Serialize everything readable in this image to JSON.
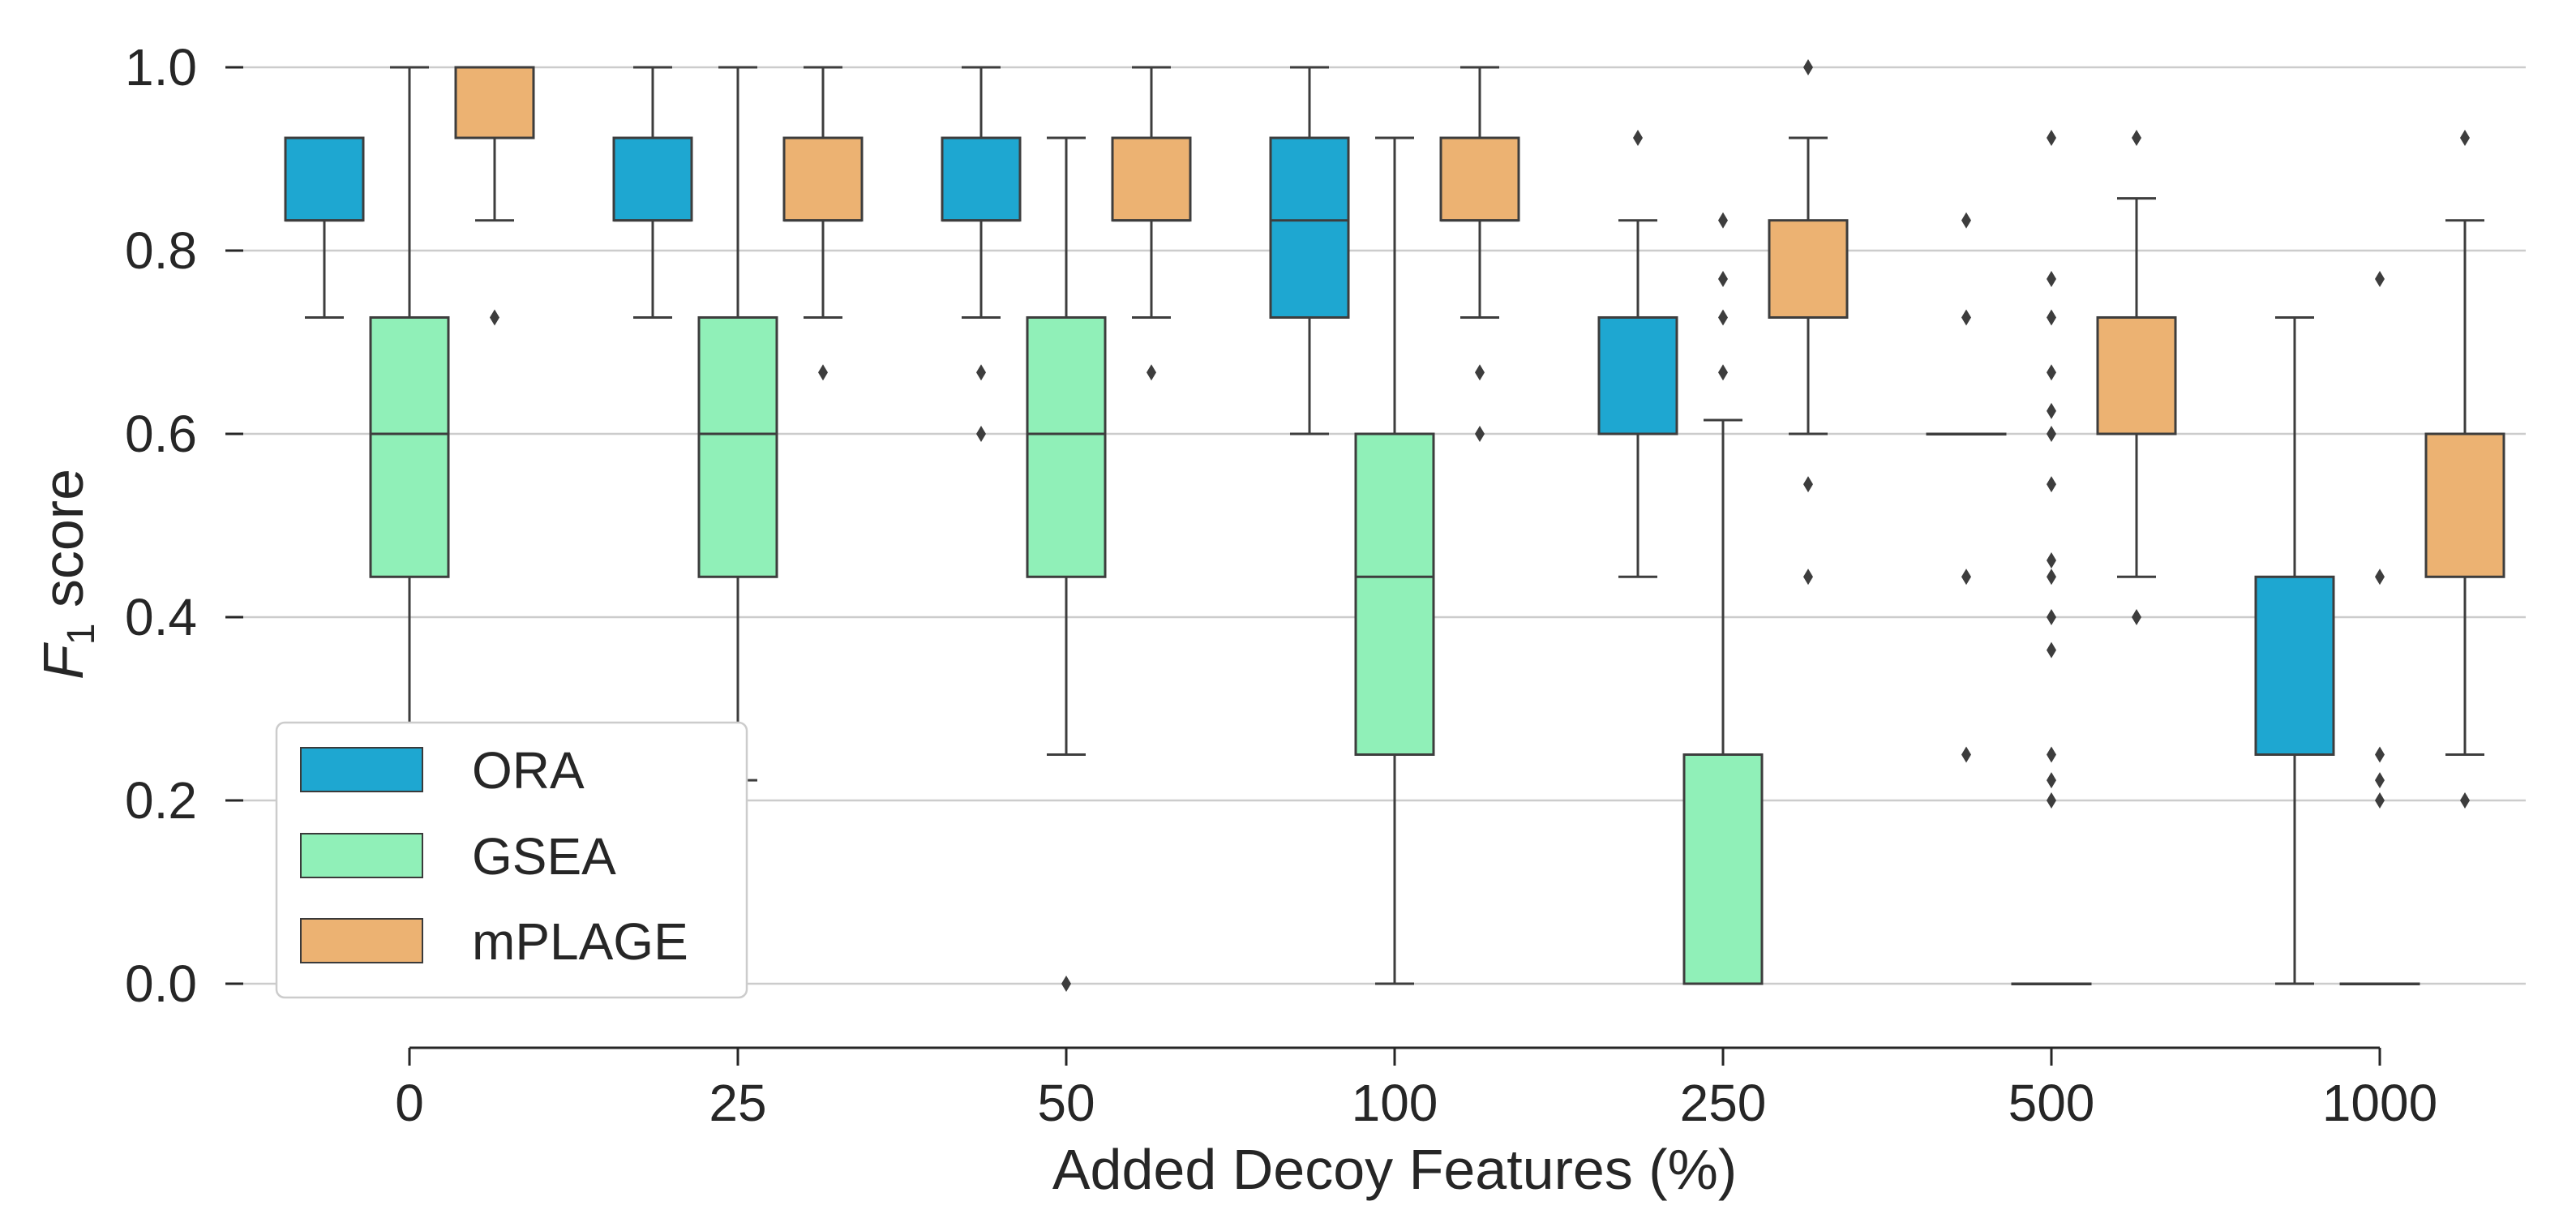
{
  "chart_data": {
    "type": "box",
    "title": "",
    "xlabel": "Added Decoy Features (%)",
    "ylabel_main": "F",
    "ylabel_sub": "1",
    "ylabel_rest": " score",
    "ylim": [
      -0.07,
      1.03
    ],
    "yticks": [
      0.0,
      0.2,
      0.4,
      0.6,
      0.8,
      1.0
    ],
    "ytick_labels": [
      "0.0",
      "0.2",
      "0.4",
      "0.6",
      "0.8",
      "1.0"
    ],
    "categories": [
      "0",
      "25",
      "50",
      "100",
      "250",
      "500",
      "1000"
    ],
    "grid": "horizontal",
    "legend_position": "lower-left",
    "series": [
      {
        "name": "ORA",
        "color": "#1ea7d1",
        "boxes": [
          {
            "q1": 0.833,
            "median": 0.833,
            "q3": 0.923,
            "whislo": 0.727,
            "whishi": 0.923,
            "fliers": []
          },
          {
            "q1": 0.833,
            "median": 0.833,
            "q3": 0.923,
            "whislo": 0.727,
            "whishi": 1.0,
            "fliers": []
          },
          {
            "q1": 0.833,
            "median": 0.833,
            "q3": 0.923,
            "whislo": 0.727,
            "whishi": 1.0,
            "fliers": [
              0.667,
              0.6
            ]
          },
          {
            "q1": 0.727,
            "median": 0.833,
            "q3": 0.923,
            "whislo": 0.6,
            "whishi": 1.0,
            "fliers": []
          },
          {
            "q1": 0.6,
            "median": 0.6,
            "q3": 0.727,
            "whislo": 0.444,
            "whishi": 0.833,
            "fliers": [
              0.923
            ]
          },
          {
            "q1": 0.6,
            "median": 0.6,
            "q3": 0.6,
            "whislo": 0.6,
            "whishi": 0.6,
            "fliers": [
              0.833,
              0.727,
              0.444,
              0.25
            ]
          },
          {
            "q1": 0.25,
            "median": 0.25,
            "q3": 0.444,
            "whislo": 0.0,
            "whishi": 0.727,
            "fliers": []
          }
        ]
      },
      {
        "name": "GSEA",
        "color": "#90f0b8",
        "boxes": [
          {
            "q1": 0.444,
            "median": 0.6,
            "q3": 0.727,
            "whislo": 0.222,
            "whishi": 1.0,
            "fliers": []
          },
          {
            "q1": 0.444,
            "median": 0.6,
            "q3": 0.727,
            "whislo": 0.222,
            "whishi": 1.0,
            "fliers": []
          },
          {
            "q1": 0.444,
            "median": 0.6,
            "q3": 0.727,
            "whislo": 0.25,
            "whishi": 0.923,
            "fliers": [
              0.0
            ]
          },
          {
            "q1": 0.25,
            "median": 0.444,
            "q3": 0.6,
            "whislo": 0.0,
            "whishi": 0.923,
            "fliers": []
          },
          {
            "q1": 0.0,
            "median": 0.0,
            "q3": 0.25,
            "whislo": 0.0,
            "whishi": 0.615,
            "fliers": [
              0.833,
              0.769,
              0.727,
              0.667
            ]
          },
          {
            "q1": 0.0,
            "median": 0.0,
            "q3": 0.0,
            "whislo": 0.0,
            "whishi": 0.0,
            "fliers": [
              0.923,
              0.769,
              0.727,
              0.667,
              0.625,
              0.6,
              0.545,
              0.462,
              0.444,
              0.4,
              0.364,
              0.25,
              0.222,
              0.2
            ]
          },
          {
            "q1": 0.0,
            "median": 0.0,
            "q3": 0.0,
            "whislo": 0.0,
            "whishi": 0.0,
            "fliers": [
              0.769,
              0.444,
              0.25,
              0.222,
              0.2
            ]
          }
        ]
      },
      {
        "name": "mPLAGE",
        "color": "#ecb272",
        "boxes": [
          {
            "q1": 0.923,
            "median": 1.0,
            "q3": 1.0,
            "whislo": 0.833,
            "whishi": 1.0,
            "fliers": [
              0.727
            ]
          },
          {
            "q1": 0.833,
            "median": 0.833,
            "q3": 0.923,
            "whislo": 0.727,
            "whishi": 1.0,
            "fliers": [
              0.667
            ]
          },
          {
            "q1": 0.833,
            "median": 0.833,
            "q3": 0.923,
            "whislo": 0.727,
            "whishi": 1.0,
            "fliers": [
              0.667
            ]
          },
          {
            "q1": 0.833,
            "median": 0.833,
            "q3": 0.923,
            "whislo": 0.727,
            "whishi": 1.0,
            "fliers": [
              0.667,
              0.6
            ]
          },
          {
            "q1": 0.727,
            "median": 0.727,
            "q3": 0.833,
            "whislo": 0.6,
            "whishi": 0.923,
            "fliers": [
              1.0,
              0.545,
              0.444
            ]
          },
          {
            "q1": 0.6,
            "median": 0.6,
            "q3": 0.727,
            "whislo": 0.444,
            "whishi": 0.857,
            "fliers": [
              0.923,
              0.4
            ]
          },
          {
            "q1": 0.444,
            "median": 0.6,
            "q3": 0.6,
            "whislo": 0.25,
            "whishi": 0.833,
            "fliers": [
              0.923,
              0.2
            ]
          }
        ]
      }
    ]
  }
}
